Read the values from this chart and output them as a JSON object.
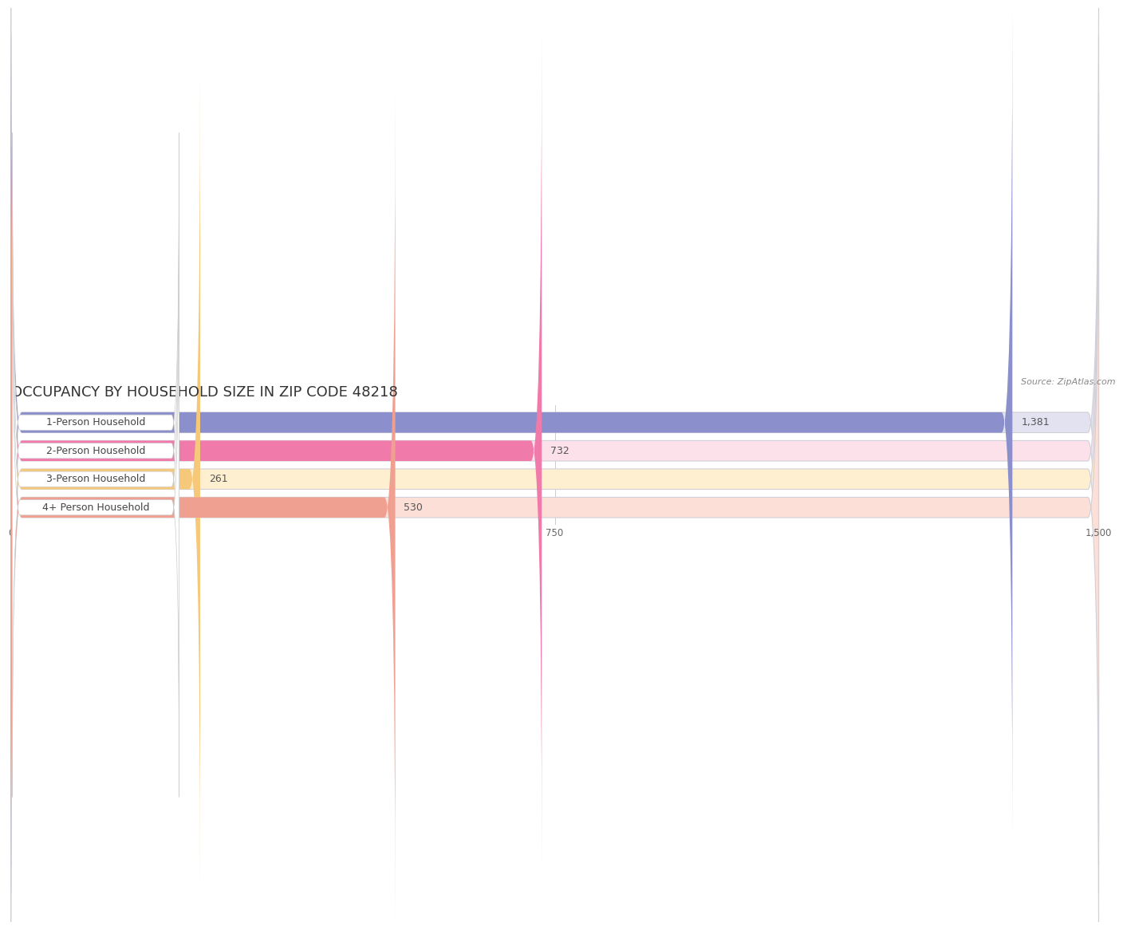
{
  "title": "OCCUPANCY BY HOUSEHOLD SIZE IN ZIP CODE 48218",
  "source": "Source: ZipAtlas.com",
  "categories": [
    "1-Person Household",
    "2-Person Household",
    "3-Person Household",
    "4+ Person Household"
  ],
  "values": [
    1381,
    732,
    261,
    530
  ],
  "bar_colors": [
    "#8b8fcc",
    "#f07aaa",
    "#f5c87a",
    "#f0a090"
  ],
  "bar_bg_colors": [
    "#e2e2f0",
    "#fce0ea",
    "#fdefd0",
    "#fce0d8"
  ],
  "xlim": [
    0,
    1500
  ],
  "xticks": [
    0,
    750,
    1500
  ],
  "background_color": "#ffffff",
  "title_fontsize": 13,
  "source_fontsize": 8,
  "label_fontsize": 9,
  "value_fontsize": 9,
  "label_bg_color": "#ffffff",
  "label_text_color": "#444444",
  "value_text_color": "#555555",
  "grid_color": "#cccccc",
  "bar_edge_color": "#d0d0d8"
}
